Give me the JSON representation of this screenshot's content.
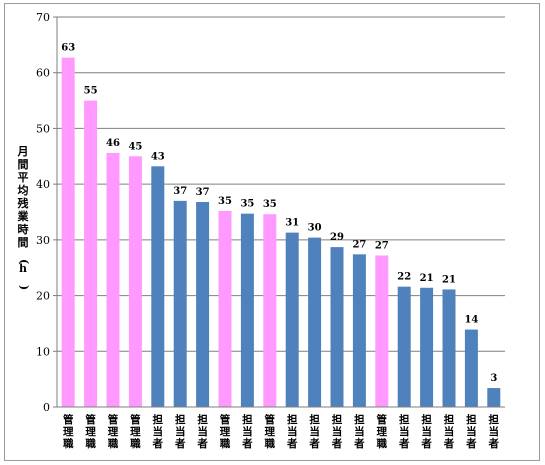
{
  "chart_data": {
    "type": "bar",
    "title": "",
    "ylabel": "月間平均残業時間(h)",
    "xlabel": "",
    "ylim": [
      0,
      70
    ],
    "yticks": [
      0,
      10,
      20,
      30,
      40,
      50,
      60,
      70
    ],
    "grid": true,
    "categories": [
      "管理職",
      "管理職",
      "管理職",
      "管理職",
      "担当者",
      "担当者",
      "担当者",
      "管理職",
      "担当者",
      "管理職",
      "担当者",
      "担当者",
      "担当者",
      "担当者",
      "管理職",
      "担当者",
      "担当者",
      "担当者",
      "担当者",
      "担当者"
    ],
    "values": [
      63,
      55,
      46,
      45,
      43,
      37,
      37,
      35,
      35,
      35,
      31,
      30,
      29,
      27,
      27,
      22,
      21,
      21,
      14,
      3
    ],
    "bar_heights": [
      62.7,
      55,
      45.6,
      45,
      43.2,
      37,
      36.8,
      35.2,
      34.7,
      34.6,
      31.3,
      30.4,
      28.7,
      27.4,
      27.2,
      21.6,
      21.4,
      21.1,
      13.9,
      3.4
    ],
    "colors": {
      "管理職": "#ff99ff",
      "担当者": "#4f81bd"
    }
  }
}
